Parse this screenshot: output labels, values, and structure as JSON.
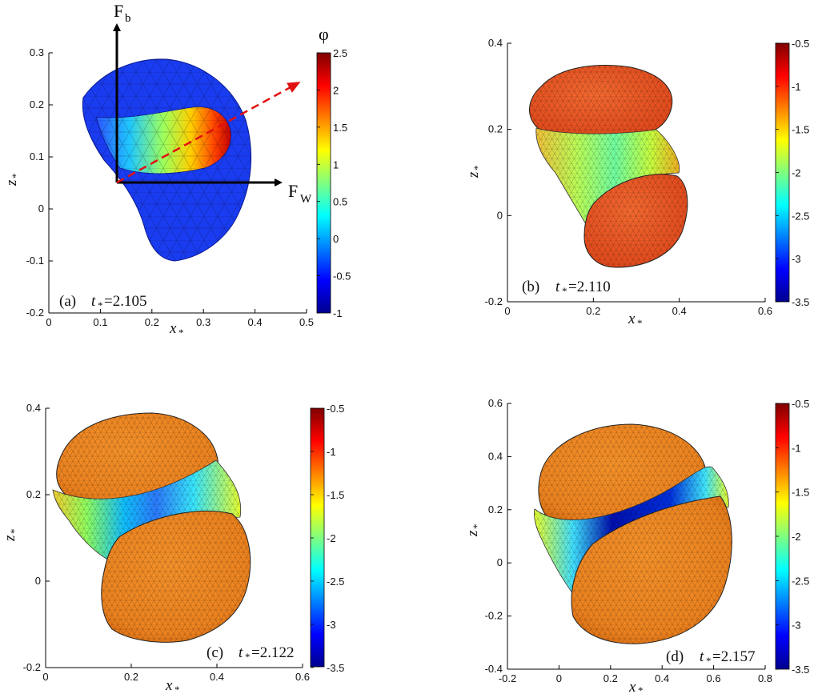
{
  "colorbar_title": "φ",
  "panels": [
    {
      "id": "a",
      "caption_label": "(a)",
      "caption_t": "t",
      "caption_value": "=2.105",
      "xlabel": "x",
      "ylabel": "z",
      "axis_subscript": "*",
      "xticks": [
        "0",
        "0.1",
        "0.2",
        "0.3",
        "0.4",
        "0.5"
      ],
      "yticks": [
        "-0.2",
        "-0.1",
        "0",
        "0.1",
        "0.2",
        "0.3"
      ],
      "cbar_ticks": [
        "2.5",
        "2",
        "1.5",
        "1",
        "0.5",
        "0",
        "-0.5",
        "-1"
      ],
      "arrow_up_label": "F",
      "arrow_up_sub": "b",
      "arrow_right_label": "F",
      "arrow_right_sub": "W"
    },
    {
      "id": "b",
      "caption_label": "(b)",
      "caption_t": "t",
      "caption_value": "=2.110",
      "xlabel": "x",
      "ylabel": "z",
      "axis_subscript": "*",
      "xticks": [
        "0",
        "0.2",
        "0.4",
        "0.6"
      ],
      "yticks": [
        "-0.2",
        "0",
        "0.2",
        "0.4"
      ],
      "cbar_ticks": [
        "-0.5",
        "-1",
        "-1.5",
        "-2",
        "-2.5",
        "-3",
        "-3.5"
      ]
    },
    {
      "id": "c",
      "caption_label": "(c)",
      "caption_t": "t",
      "caption_value": "=2.122",
      "xlabel": "x",
      "ylabel": "z",
      "axis_subscript": "*",
      "xticks": [
        "0",
        "0.2",
        "0.4",
        "0.6"
      ],
      "yticks": [
        "-0.2",
        "0",
        "0.2",
        "0.4"
      ],
      "cbar_ticks": [
        "-0.5",
        "-1",
        "-1.5",
        "-2",
        "-2.5",
        "-3",
        "-3.5"
      ]
    },
    {
      "id": "d",
      "caption_label": "(d)",
      "caption_t": "t",
      "caption_value": "=2.157",
      "xlabel": "x",
      "ylabel": "z",
      "axis_subscript": "*",
      "xticks": [
        "-0.2",
        "0",
        "0.2",
        "0.4",
        "0.6",
        "0.8"
      ],
      "yticks": [
        "-0.4",
        "-0.2",
        "0",
        "0.2",
        "0.4",
        "0.6"
      ],
      "cbar_ticks": [
        "-0.5",
        "-1",
        "-1.5",
        "-2",
        "-2.5",
        "-3",
        "-3.5"
      ]
    }
  ],
  "colors": {
    "jet_dark_red": "#7f0000",
    "jet_red": "#ff0000",
    "jet_yellow": "#ffff00",
    "jet_cyan": "#00ffff",
    "jet_blue": "#0000ff",
    "jet_dark_blue": "#00008f",
    "droplet_orange": "#f08a1e",
    "droplet_blue_a": "#1f3fe0",
    "arrow_dashed": "#e21010"
  }
}
